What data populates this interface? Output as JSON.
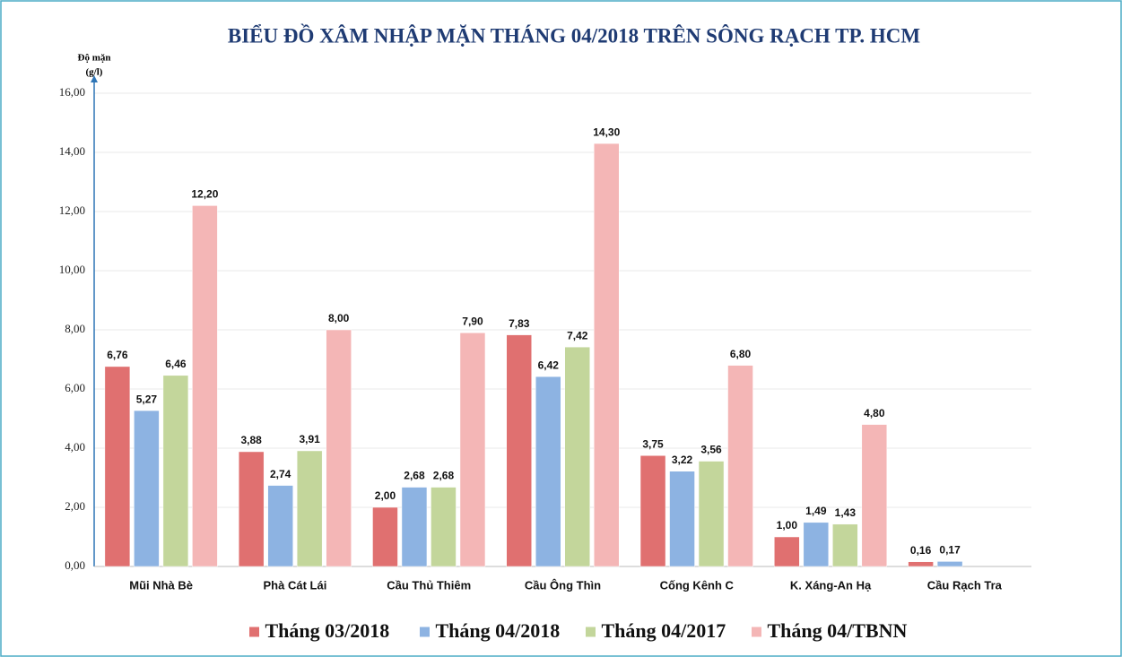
{
  "chart_data": {
    "type": "bar",
    "title": "BIỂU ĐỒ XÂM NHẬP MẶN THÁNG 04/2018 TRÊN SÔNG RẠCH TP. HCM",
    "ylabel": [
      "Độ mặn",
      "(g/l)"
    ],
    "categories": [
      "Mũi Nhà Bè",
      "Phà Cát Lái",
      "Cầu Thủ Thiêm",
      "Cầu Ông Thìn",
      "Cống Kênh C",
      "K. Xáng-An Hạ",
      "Cầu Rạch Tra"
    ],
    "series": [
      {
        "name": "Tháng 03/2018",
        "color": "#e07070",
        "values": [
          6.76,
          3.88,
          2.0,
          7.83,
          3.75,
          1.0,
          0.16
        ],
        "value_labels": [
          "6,76",
          "3,88",
          "2,00",
          "7,83",
          "3,75",
          "1,00",
          "0,16"
        ]
      },
      {
        "name": "Tháng 04/2018",
        "color": "#8db3e2",
        "values": [
          5.27,
          2.74,
          2.68,
          6.42,
          3.22,
          1.49,
          0.17
        ],
        "value_labels": [
          "5,27",
          "2,74",
          "2,68",
          "6,42",
          "3,22",
          "1,49",
          "0,17"
        ]
      },
      {
        "name": "Tháng 04/2017",
        "color": "#c3d69b",
        "values": [
          6.46,
          3.91,
          2.68,
          7.42,
          3.56,
          1.43,
          null
        ],
        "value_labels": [
          "6,46",
          "3,91",
          "2,68",
          "7,42",
          "3,56",
          "1,43",
          null
        ]
      },
      {
        "name": "Tháng 04/TBNN",
        "color": "#f4b6b6",
        "values": [
          12.2,
          8.0,
          7.9,
          14.3,
          6.8,
          4.8,
          null
        ],
        "value_labels": [
          "12,20",
          "8,00",
          "7,90",
          "14,30",
          "6,80",
          "4,80",
          null
        ]
      }
    ],
    "ylim": [
      0,
      16
    ],
    "yticks": [
      {
        "value": 0,
        "label": "0,00"
      },
      {
        "value": 2,
        "label": "2,00"
      },
      {
        "value": 4,
        "label": "4,00"
      },
      {
        "value": 6,
        "label": "6,00"
      },
      {
        "value": 8,
        "label": "8,00"
      },
      {
        "value": 10,
        "label": "10,00"
      },
      {
        "value": 12,
        "label": "12,00"
      },
      {
        "value": 14,
        "label": "14,00"
      },
      {
        "value": 16,
        "label": "16,00"
      }
    ],
    "grid": true,
    "legend": "bottom"
  }
}
